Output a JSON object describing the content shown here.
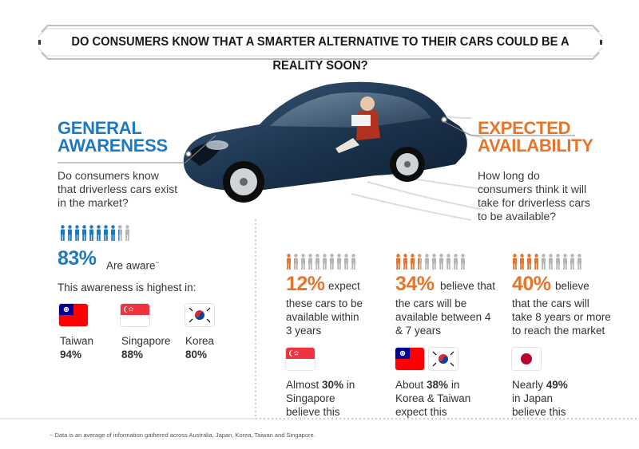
{
  "title": "DO CONSUMERS KNOW THAT A SMARTER ALTERNATIVE TO THEIR CARS COULD BE A REALITY SOON?",
  "general": {
    "heading_line1": "GENERAL",
    "heading_line2": "AWARENESS",
    "question_line1": "Do consumers know",
    "question_line2": "that driverless cars exist",
    "question_line3": "in the market?",
    "aware_pct": "83%",
    "aware_label": "Are aware",
    "aware_mark": "~",
    "aware_fraction": 0.83,
    "highest_label": "This awareness is highest in:",
    "countries": [
      {
        "name": "Taiwan",
        "pct": "94%"
      },
      {
        "name": "Singapore",
        "pct": "88%"
      },
      {
        "name": "Korea",
        "pct": "80%"
      }
    ]
  },
  "expected": {
    "heading_line1": "EXPECTED",
    "heading_line2": "AVAILABILITY",
    "question_line1": "How long do",
    "question_line2": "consumers think it will",
    "question_line3": "take for driverless cars",
    "question_line4": "to be available?",
    "columns": [
      {
        "pct": "12%",
        "fraction": 0.12,
        "text_first": "expect",
        "text_lines": [
          "these cars to be",
          "available within",
          "3 years"
        ],
        "note_pre": "Almost ",
        "note_bold": "30%",
        "note_post": " in",
        "note_lines": [
          "Singapore",
          "believe this"
        ]
      },
      {
        "pct": "34%",
        "fraction": 0.34,
        "text_first": "believe that",
        "text_lines": [
          "the cars will be",
          "available between 4",
          "& 7 years"
        ],
        "note_pre": "About ",
        "note_bold": "38%",
        "note_post": " in",
        "note_lines": [
          "Korea & Taiwan",
          "expect this"
        ]
      },
      {
        "pct": "40%",
        "fraction": 0.4,
        "text_first": "believe",
        "text_lines": [
          "that the cars will",
          "take 8 years or more",
          "to reach the market"
        ],
        "note_pre": "Nearly ",
        "note_bold": "49%",
        "note_post": "",
        "note_lines": [
          "in Japan",
          "believe this"
        ]
      }
    ]
  },
  "footnote": "~ Data is an average of information gathered across Australia, Japan, Korea, Taiwan and Singapore.",
  "colors": {
    "blue": "#1b7ac2",
    "orange": "#e4752a",
    "grey_icon": "#b5b5b5"
  },
  "icons": [
    "person-icon",
    "taiwan-flag-icon",
    "singapore-flag-icon",
    "korea-flag-icon",
    "japan-flag-icon",
    "car-illustration"
  ]
}
